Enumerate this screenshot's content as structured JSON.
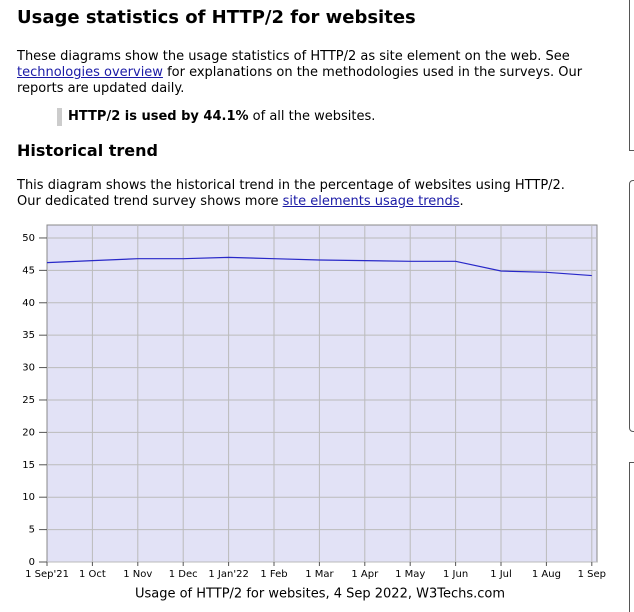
{
  "header": {
    "title": "Usage statistics of HTTP/2 for websites"
  },
  "intro": [
    "These diagrams show the usage statistics of HTTP/2 as site element on the web. See ",
    "technologies overview",
    " for explanations on the methodologies used in the surveys. Our reports are updated daily."
  ],
  "highlight": {
    "bold": "HTTP/2 is used by 44.1%",
    "rest": " of all the websites."
  },
  "section": {
    "title": "Historical trend"
  },
  "trend_text": [
    "This diagram shows the historical trend in the percentage of websites using HTTP/2.",
    "Our dedicated trend survey shows more ",
    "site elements usage trends",
    "."
  ],
  "chart_data": {
    "type": "line",
    "caption": "Usage of HTTP/2 for websites, 4 Sep 2022, W3Techs.com",
    "categories": [
      "1 Sep'21",
      "1 Oct",
      "1 Nov",
      "1 Dec",
      "1 Jan'22",
      "1 Feb",
      "1 Mar",
      "1 Apr",
      "1 May",
      "1 Jun",
      "1 Jul",
      "1 Aug",
      "1 Sep"
    ],
    "series": [
      {
        "name": "HTTP/2",
        "color": "#2828c8",
        "values": [
          46.2,
          46.5,
          46.8,
          46.8,
          47.0,
          46.8,
          46.6,
          46.5,
          46.4,
          46.4,
          44.9,
          44.7,
          44.2
        ]
      }
    ],
    "ylim": [
      0,
      52
    ],
    "yticks": [
      0,
      5,
      10,
      15,
      20,
      25,
      30,
      35,
      40,
      45,
      50
    ],
    "grid": true,
    "background": "#e2e2f6"
  }
}
